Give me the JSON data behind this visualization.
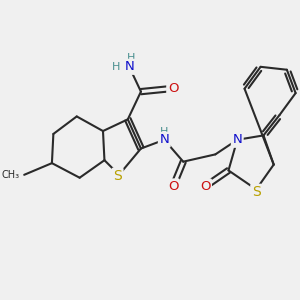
{
  "bg": "#f0f0f0",
  "bond_color": "#2a2a2a",
  "bw": 1.5,
  "colors": {
    "C": "#2a2a2a",
    "H": "#4a9090",
    "N": "#1010cc",
    "O": "#cc1010",
    "S": "#b8a000"
  },
  "fs": 8.5,
  "xlim": [
    0,
    10
  ],
  "ylim": [
    0,
    10
  ]
}
